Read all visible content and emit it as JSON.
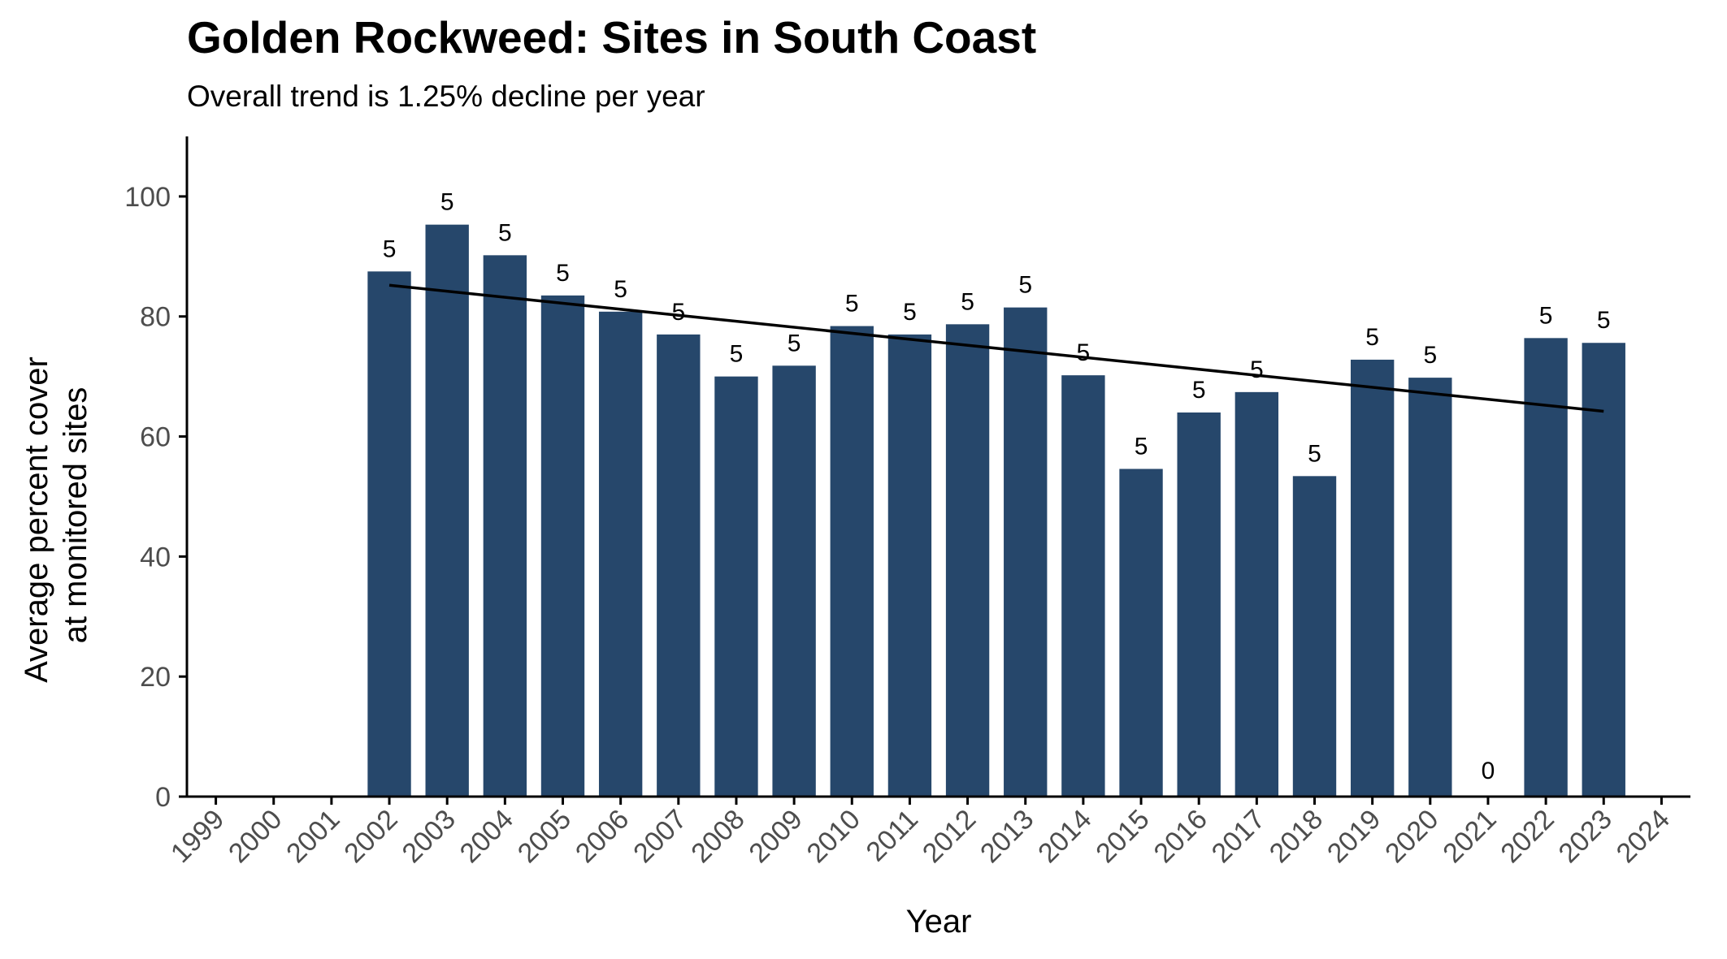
{
  "chart_data": {
    "type": "bar",
    "title": "Golden Rockweed: Sites in South Coast",
    "subtitle": "Overall trend is 1.25% decline per year",
    "xlabel": "Year",
    "ylabel_lines": [
      "Average percent cover",
      "at monitored sites"
    ],
    "ylim": [
      0,
      110
    ],
    "yticks": [
      0,
      20,
      40,
      60,
      80,
      100
    ],
    "categories": [
      "1999",
      "2000",
      "2001",
      "2002",
      "2003",
      "2004",
      "2005",
      "2006",
      "2007",
      "2008",
      "2009",
      "2010",
      "2011",
      "2012",
      "2013",
      "2014",
      "2015",
      "2016",
      "2017",
      "2018",
      "2019",
      "2020",
      "2021",
      "2022",
      "2023",
      "2024"
    ],
    "values": [
      null,
      null,
      null,
      87.5,
      95.3,
      90.2,
      83.5,
      80.8,
      77.0,
      70.0,
      71.8,
      78.4,
      77.0,
      78.7,
      81.5,
      70.2,
      54.6,
      64.0,
      67.4,
      53.4,
      72.8,
      69.8,
      null,
      76.4,
      75.6,
      null
    ],
    "labels": [
      "",
      "",
      "",
      "5",
      "5",
      "5",
      "5",
      "5",
      "5",
      "5",
      "5",
      "5",
      "5",
      "5",
      "5",
      "5",
      "5",
      "5",
      "5",
      "5",
      "5",
      "5",
      "0",
      "5",
      "5",
      ""
    ],
    "trend": {
      "from": [
        "2002",
        85.2
      ],
      "to": [
        "2023",
        64.2
      ]
    },
    "colors": {
      "bar": "#26476b",
      "trend": "#000000",
      "axis": "#000000"
    },
    "grid": false,
    "legend": "none"
  }
}
